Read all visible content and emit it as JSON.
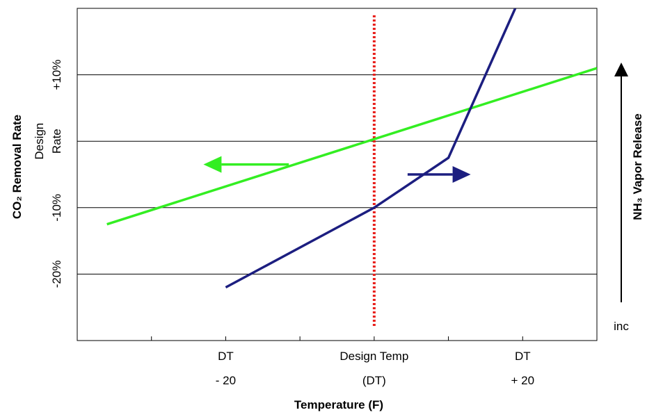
{
  "chart_data": {
    "type": "line",
    "xlabel": "Temperature (F)",
    "ylabel_left": "CO₂ Removal Rate",
    "ylabel_right": "NH₃ Vapor Release",
    "xlim": [
      -40,
      30
    ],
    "ylim": [
      -30,
      20
    ],
    "x_ticks": [
      {
        "x": -20,
        "lines": [
          "DT",
          "- 20"
        ]
      },
      {
        "x": 0,
        "lines": [
          "Design Temp",
          "(DT)"
        ]
      },
      {
        "x": 20,
        "lines": [
          "DT",
          "+ 20"
        ]
      }
    ],
    "y_ticks": [
      {
        "y": 10,
        "label": "+10%"
      },
      {
        "y": 0,
        "label": "Design\nRate"
      },
      {
        "y": -10,
        "label": "-10%"
      },
      {
        "y": -20,
        "label": "-20%"
      }
    ],
    "gridlines_y": [
      10,
      0,
      -10,
      -20
    ],
    "vertical_reference": {
      "x": 0,
      "color": "#e8201c",
      "style": "dotted"
    },
    "right_axis_arrow_label": "inc",
    "series": [
      {
        "color": "#33ee22",
        "axis": "left",
        "points": [
          [
            -36,
            -12.5
          ],
          [
            30,
            11
          ]
        ]
      },
      {
        "color": "#1c1e80",
        "axis": "right",
        "points": [
          [
            -20,
            -22
          ],
          [
            0,
            -10
          ],
          [
            10,
            -2.5
          ],
          [
            19,
            20
          ]
        ]
      }
    ],
    "direction_arrows": [
      {
        "color": "#33ee22",
        "from": [
          -11.5,
          -3.5
        ],
        "to": [
          -23,
          -3.5
        ]
      },
      {
        "color": "#1c1e80",
        "from": [
          4.5,
          -5
        ],
        "to": [
          13,
          -5
        ]
      }
    ]
  }
}
